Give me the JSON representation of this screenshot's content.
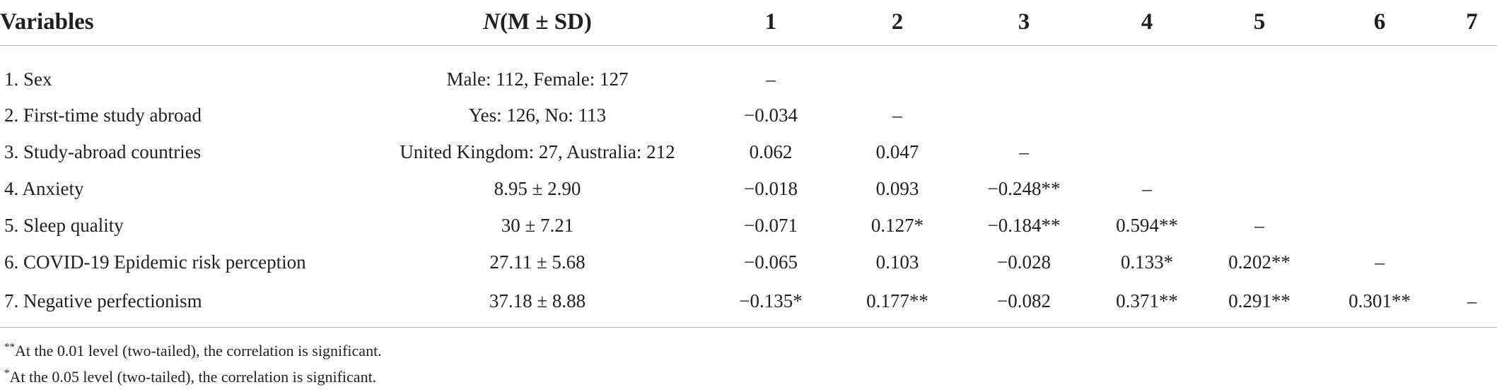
{
  "table": {
    "header": {
      "variables": "Variables",
      "n_italic": "N",
      "n_rest": "(M ± SD)",
      "c1": "1",
      "c2": "2",
      "c3": "3",
      "c4": "4",
      "c5": "5",
      "c6": "6",
      "c7": "7"
    },
    "rows": [
      {
        "variable": "1. Sex",
        "n": "Male: 112, Female: 127",
        "c1": "–",
        "c2": "",
        "c3": "",
        "c4": "",
        "c5": "",
        "c6": "",
        "c7": ""
      },
      {
        "variable": "2. First-time study abroad",
        "n": "Yes: 126, No: 113",
        "c1": "−0.034",
        "c2": "–",
        "c3": "",
        "c4": "",
        "c5": "",
        "c6": "",
        "c7": ""
      },
      {
        "variable": "3. Study-abroad countries",
        "n": "United Kingdom: 27, Australia: 212",
        "c1": "0.062",
        "c2": "0.047",
        "c3": "–",
        "c4": "",
        "c5": "",
        "c6": "",
        "c7": ""
      },
      {
        "variable": "4. Anxiety",
        "n": "8.95 ± 2.90",
        "c1": "−0.018",
        "c2": "0.093",
        "c3": "−0.248**",
        "c4": "–",
        "c5": "",
        "c6": "",
        "c7": ""
      },
      {
        "variable": "5. Sleep quality",
        "n": "30 ± 7.21",
        "c1": "−0.071",
        "c2": "0.127*",
        "c3": "−0.184**",
        "c4": "0.594**",
        "c5": "–",
        "c6": "",
        "c7": ""
      },
      {
        "variable": "6. COVID-19 Epidemic risk perception",
        "n": "27.11 ± 5.68",
        "c1": "−0.065",
        "c2": "0.103",
        "c3": "−0.028",
        "c4": "0.133*",
        "c5": "0.202**",
        "c6": "–",
        "c7": ""
      },
      {
        "variable": "7. Negative perfectionism",
        "n": "37.18 ± 8.88",
        "c1": "−0.135*",
        "c2": "0.177**",
        "c3": "−0.082",
        "c4": "0.371**",
        "c5": "0.291**",
        "c6": "0.301**",
        "c7": "–"
      }
    ]
  },
  "notes": {
    "note1_mark": "**",
    "note1_text": "At the 0.01 level (two-tailed), the correlation is significant.",
    "note2_mark": "*",
    "note2_text": "At the 0.05 level (two-tailed), the correlation is significant."
  }
}
